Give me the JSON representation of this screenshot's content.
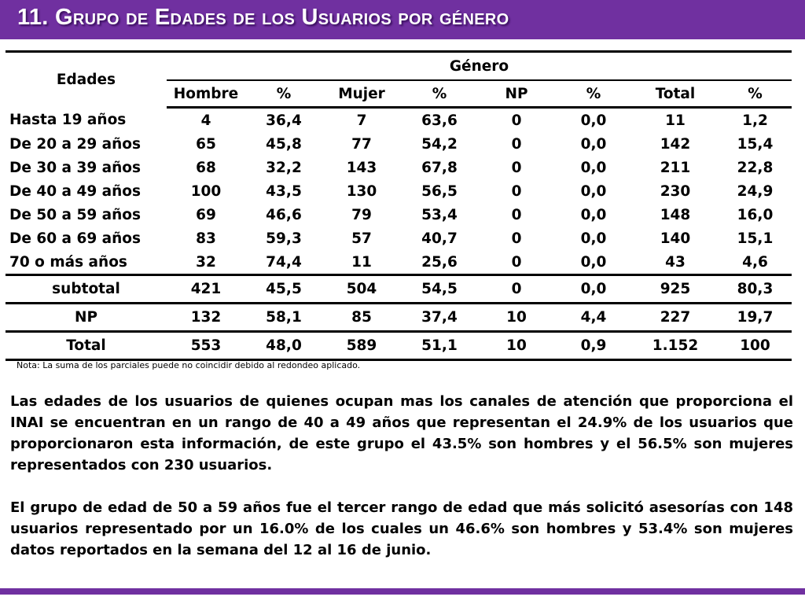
{
  "title": "11. Grupo de  Edades de los Usuarios por género",
  "table": {
    "row_header": "Edades",
    "group_header": "Género",
    "columns": [
      "Hombre",
      "%",
      "Mujer",
      "%",
      "NP",
      "%",
      "Total",
      "%"
    ],
    "rows": [
      {
        "label": "Hasta 19 años",
        "values": [
          "4",
          "36,4",
          "7",
          "63,6",
          "0",
          "0,0",
          "11",
          "1,2"
        ]
      },
      {
        "label": "De 20 a 29 años",
        "values": [
          "65",
          "45,8",
          "77",
          "54,2",
          "0",
          "0,0",
          "142",
          "15,4"
        ]
      },
      {
        "label": "De 30 a 39 años",
        "values": [
          "68",
          "32,2",
          "143",
          "67,8",
          "0",
          "0,0",
          "211",
          "22,8"
        ]
      },
      {
        "label": "De 40 a 49 años",
        "values": [
          "100",
          "43,5",
          "130",
          "56,5",
          "0",
          "0,0",
          "230",
          "24,9"
        ]
      },
      {
        "label": "De 50 a 59 años",
        "values": [
          "69",
          "46,6",
          "79",
          "53,4",
          "0",
          "0,0",
          "148",
          "16,0"
        ]
      },
      {
        "label": "De 60 a 69 años",
        "values": [
          "83",
          "59,3",
          "57",
          "40,7",
          "0",
          "0,0",
          "140",
          "15,1"
        ]
      },
      {
        "label": "70 o más años",
        "values": [
          "32",
          "74,4",
          "11",
          "25,6",
          "0",
          "0,0",
          "43",
          "4,6"
        ]
      }
    ],
    "summary_rows": [
      {
        "label": "subtotal",
        "values": [
          "421",
          "45,5",
          "504",
          "54,5",
          "0",
          "0,0",
          "925",
          "80,3"
        ]
      },
      {
        "label": "NP",
        "values": [
          "132",
          "58,1",
          "85",
          "37,4",
          "10",
          "4,4",
          "227",
          "19,7"
        ]
      },
      {
        "label": "Total",
        "values": [
          "553",
          "48,0",
          "589",
          "51,1",
          "10",
          "0,9",
          "1.152",
          "100"
        ]
      }
    ]
  },
  "note": "Nota: La suma de los parciales puede no coincidir debido al redondeo aplicado.",
  "paragraphs": [
    "Las edades de los usuarios de quienes ocupan mas los canales de atención que proporciona el INAI se encuentran en un rango de 40 a 49 años que representan el 24.9% de los usuarios que proporcionaron esta información, de este grupo el 43.5% son hombres y el 56.5% son mujeres representados con 230 usuarios.",
    "El grupo de edad de 50 a 59 años fue el tercer rango de edad que más solicitó asesorías con 148 usuarios representado por un 16.0% de los cuales un 46.6% son hombres y 53.4% son mujeres datos reportados en la semana del 12 al 16 de junio."
  ],
  "colors": {
    "accent": "#7030a0",
    "title_text": "#ffffff"
  }
}
